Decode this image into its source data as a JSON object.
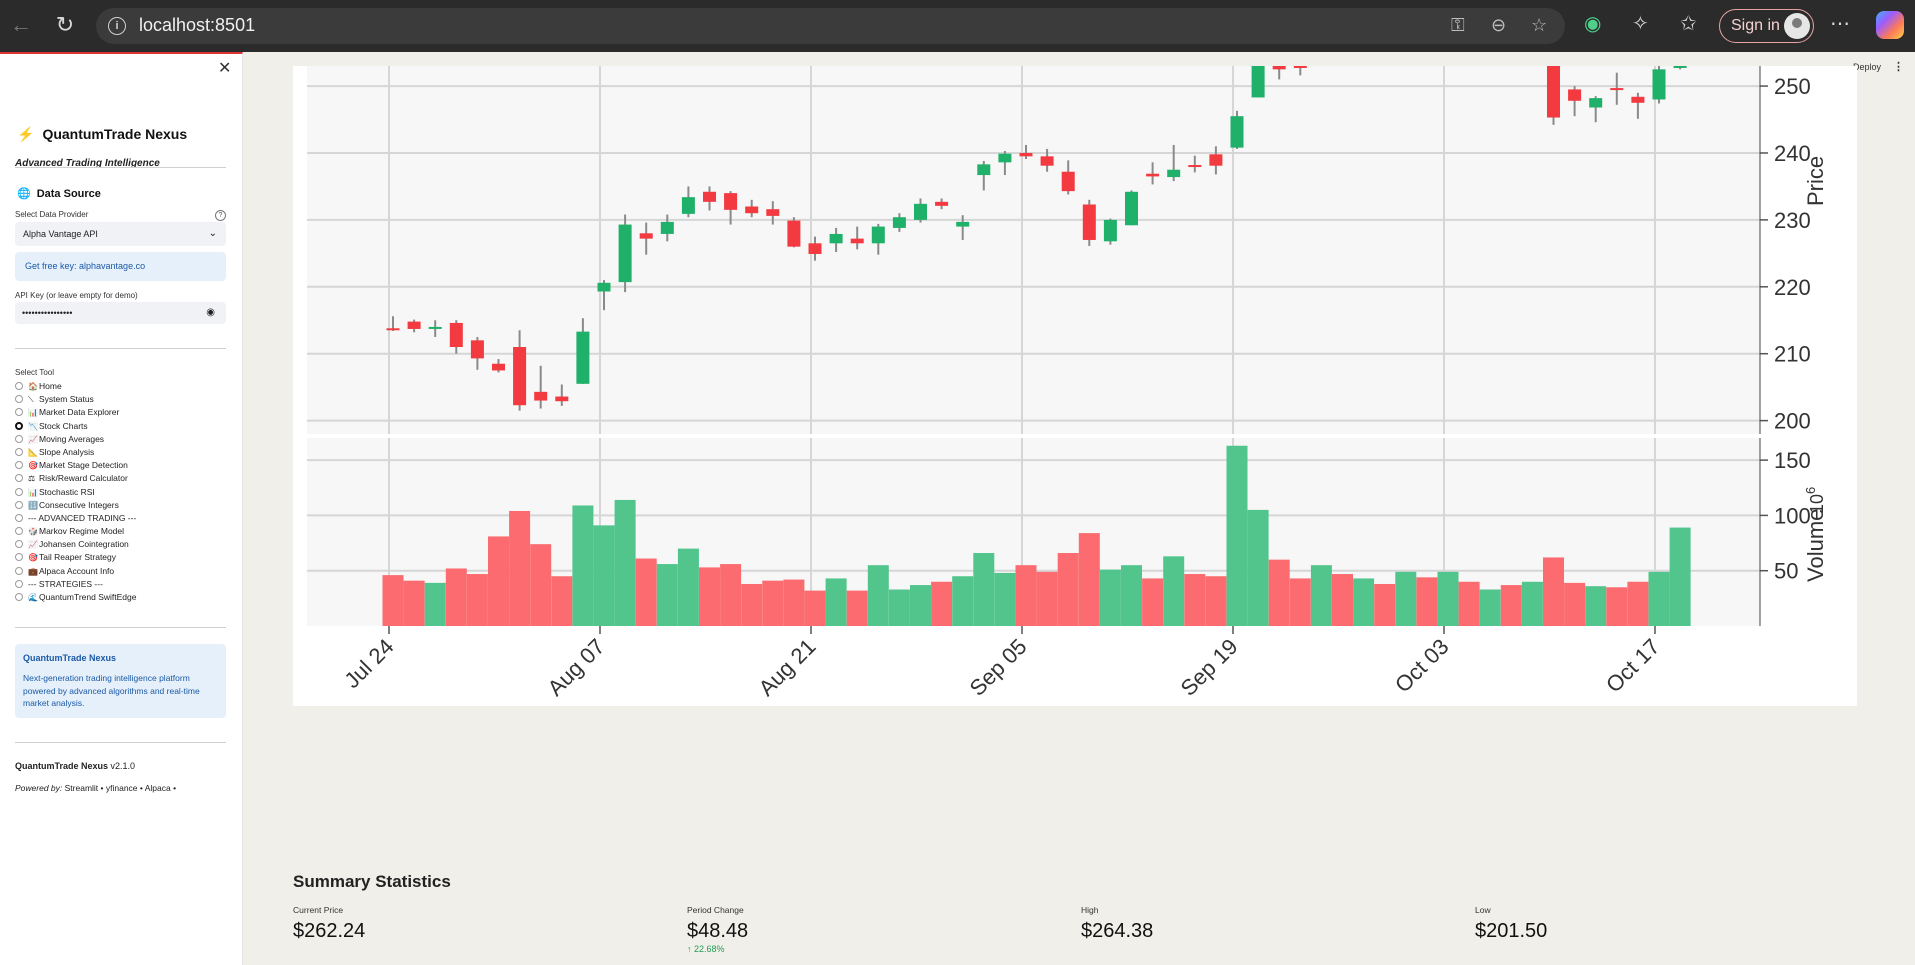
{
  "browser": {
    "url": "localhost:8501",
    "sign_in": "Sign in"
  },
  "sidebar": {
    "app_name": "QuantumTrade Nexus",
    "tagline": "Advanced Trading Intelligence",
    "data_source_title": "Data Source",
    "provider_label": "Select Data Provider",
    "provider_value": "Alpha Vantage API",
    "free_key_text": "Get free key: alphavantage.co",
    "api_key_label": "API Key (or leave empty for demo)",
    "api_key_value": "••••••••••••••••",
    "select_tool_label": "Select Tool",
    "tools": [
      {
        "icon": "🏠",
        "label": "Home",
        "selected": false
      },
      {
        "icon": "⟍",
        "label": "System Status",
        "selected": false
      },
      {
        "icon": "📊",
        "label": "Market Data Explorer",
        "selected": false
      },
      {
        "icon": "📉",
        "label": "Stock Charts",
        "selected": true
      },
      {
        "icon": "📈",
        "label": "Moving Averages",
        "selected": false
      },
      {
        "icon": "📐",
        "label": "Slope Analysis",
        "selected": false
      },
      {
        "icon": "🎯",
        "label": "Market Stage Detection",
        "selected": false
      },
      {
        "icon": "⚖",
        "label": "Risk/Reward Calculator",
        "selected": false
      },
      {
        "icon": "📊",
        "label": "Stochastic RSI",
        "selected": false
      },
      {
        "icon": "🔢",
        "label": "Consecutive Integers",
        "selected": false
      },
      {
        "icon": "",
        "label": "--- ADVANCED TRADING ---",
        "selected": false
      },
      {
        "icon": "🎲",
        "label": "Markov Regime Model",
        "selected": false
      },
      {
        "icon": "📈",
        "label": "Johansen Cointegration",
        "selected": false
      },
      {
        "icon": "🎯",
        "label": "Tail Reaper Strategy",
        "selected": false
      },
      {
        "icon": "💼",
        "label": "Alpaca Account Info",
        "selected": false
      },
      {
        "icon": "",
        "label": "--- STRATEGIES ---",
        "selected": false
      },
      {
        "icon": "🌊",
        "label": "QuantumTrend SwiftEdge",
        "selected": false
      }
    ],
    "about_title": "QuantumTrade Nexus",
    "about_text": "Next-generation trading intelligence platform powered by advanced algorithms and real-time market analysis.",
    "version_name": "QuantumTrade Nexus",
    "version": "v2.1.0",
    "powered_by_label": "Powered by:",
    "powered_by": "Streamlit • yfinance • Alpaca •"
  },
  "header": {
    "deploy": "Deploy"
  },
  "chart_data": {
    "type": "candlestick",
    "price_axis_label": "Price",
    "volume_axis_label": "Volume",
    "volume_unit": "10^6",
    "price_ticks": [
      200,
      210,
      220,
      230,
      240,
      250
    ],
    "volume_ticks": [
      50,
      100,
      150
    ],
    "date_ticks": [
      "Jul 24",
      "Aug 07",
      "Aug 21",
      "Sep 05",
      "Sep 19",
      "Oct 03",
      "Oct 17"
    ],
    "ylim_price": [
      198,
      253
    ],
    "ylim_volume": [
      0,
      170
    ],
    "up_color": "#1fb06a",
    "down_color": "#f23a40",
    "candles": [
      {
        "o": 213.8,
        "h": 215.6,
        "l": 213.4,
        "c": 213.7,
        "v": 46
      },
      {
        "o": 214.8,
        "h": 215.1,
        "l": 213.2,
        "c": 213.7,
        "v": 41
      },
      {
        "o": 213.9,
        "h": 215.0,
        "l": 212.5,
        "c": 214.0,
        "v": 39
      },
      {
        "o": 214.6,
        "h": 215.0,
        "l": 210.0,
        "c": 211.0,
        "v": 52
      },
      {
        "o": 212.0,
        "h": 212.5,
        "l": 207.6,
        "c": 209.3,
        "v": 47
      },
      {
        "o": 208.5,
        "h": 209.2,
        "l": 207.2,
        "c": 207.5,
        "v": 81
      },
      {
        "o": 211.0,
        "h": 213.5,
        "l": 201.5,
        "c": 202.3,
        "v": 104
      },
      {
        "o": 204.3,
        "h": 208.2,
        "l": 201.8,
        "c": 203.0,
        "v": 74
      },
      {
        "o": 203.6,
        "h": 205.4,
        "l": 202.2,
        "c": 202.9,
        "v": 45
      },
      {
        "o": 205.5,
        "h": 215.3,
        "l": 205.5,
        "c": 213.3,
        "v": 109
      },
      {
        "o": 219.3,
        "h": 221.0,
        "l": 216.5,
        "c": 220.6,
        "v": 91
      },
      {
        "o": 220.7,
        "h": 230.8,
        "l": 219.2,
        "c": 229.3,
        "v": 114
      },
      {
        "o": 228.0,
        "h": 229.6,
        "l": 224.8,
        "c": 227.2,
        "v": 61
      },
      {
        "o": 227.9,
        "h": 230.8,
        "l": 226.8,
        "c": 229.7,
        "v": 56
      },
      {
        "o": 230.9,
        "h": 235.0,
        "l": 230.4,
        "c": 233.4,
        "v": 70
      },
      {
        "o": 234.2,
        "h": 235.0,
        "l": 231.4,
        "c": 232.7,
        "v": 53
      },
      {
        "o": 234.0,
        "h": 234.3,
        "l": 229.3,
        "c": 231.5,
        "v": 56
      },
      {
        "o": 232.0,
        "h": 233.0,
        "l": 230.4,
        "c": 231.0,
        "v": 38
      },
      {
        "o": 231.6,
        "h": 232.8,
        "l": 229.3,
        "c": 230.6,
        "v": 41
      },
      {
        "o": 229.9,
        "h": 230.4,
        "l": 225.9,
        "c": 226.0,
        "v": 42
      },
      {
        "o": 226.5,
        "h": 227.5,
        "l": 223.9,
        "c": 224.9,
        "v": 32
      },
      {
        "o": 226.5,
        "h": 228.8,
        "l": 225.2,
        "c": 227.9,
        "v": 43
      },
      {
        "o": 227.2,
        "h": 229.0,
        "l": 225.6,
        "c": 226.5,
        "v": 32
      },
      {
        "o": 226.5,
        "h": 229.4,
        "l": 224.8,
        "c": 229.0,
        "v": 55
      },
      {
        "o": 228.8,
        "h": 231.0,
        "l": 228.2,
        "c": 230.4,
        "v": 33
      },
      {
        "o": 230.0,
        "h": 233.2,
        "l": 229.6,
        "c": 232.4,
        "v": 37
      },
      {
        "o": 232.7,
        "h": 233.2,
        "l": 231.6,
        "c": 232.1,
        "v": 40
      },
      {
        "o": 229.0,
        "h": 230.7,
        "l": 227.0,
        "c": 229.7,
        "v": 45
      },
      {
        "o": 236.7,
        "h": 238.8,
        "l": 234.4,
        "c": 238.3,
        "v": 66
      },
      {
        "o": 238.6,
        "h": 240.3,
        "l": 236.7,
        "c": 239.9,
        "v": 48
      },
      {
        "o": 240.0,
        "h": 241.2,
        "l": 239.1,
        "c": 239.5,
        "v": 55
      },
      {
        "o": 239.5,
        "h": 240.6,
        "l": 237.2,
        "c": 238.1,
        "v": 49
      },
      {
        "o": 237.2,
        "h": 238.9,
        "l": 233.8,
        "c": 234.3,
        "v": 66
      },
      {
        "o": 232.3,
        "h": 233.0,
        "l": 226.1,
        "c": 227.0,
        "v": 84
      },
      {
        "o": 226.8,
        "h": 230.2,
        "l": 226.3,
        "c": 230.0,
        "v": 51
      },
      {
        "o": 229.2,
        "h": 234.4,
        "l": 229.2,
        "c": 234.2,
        "v": 55
      },
      {
        "o": 236.9,
        "h": 238.6,
        "l": 235.3,
        "c": 236.5,
        "v": 43
      },
      {
        "o": 236.4,
        "h": 241.2,
        "l": 235.8,
        "c": 237.5,
        "v": 63
      },
      {
        "o": 238.2,
        "h": 239.6,
        "l": 237.1,
        "c": 238.0,
        "v": 47
      },
      {
        "o": 239.8,
        "h": 241.0,
        "l": 236.8,
        "c": 238.1,
        "v": 45
      },
      {
        "o": 240.8,
        "h": 246.3,
        "l": 240.6,
        "c": 245.5,
        "v": 163
      },
      {
        "o": 248.3,
        "h": 253.0,
        "l": 248.3,
        "c": 253.0,
        "v": 105
      },
      {
        "o": 253.0,
        "h": 253.0,
        "l": 251.0,
        "c": 252.5,
        "v": 60
      },
      {
        "o": 253.0,
        "h": 253.0,
        "l": 251.6,
        "c": 252.8,
        "v": 43
      },
      {
        "o": null,
        "h": null,
        "l": null,
        "c": null,
        "v": 55
      },
      {
        "o": null,
        "h": null,
        "l": null,
        "c": null,
        "v": 47
      },
      {
        "o": null,
        "h": null,
        "l": null,
        "c": null,
        "v": 43
      },
      {
        "o": null,
        "h": null,
        "l": null,
        "c": null,
        "v": 38
      },
      {
        "o": null,
        "h": null,
        "l": null,
        "c": null,
        "v": 49
      },
      {
        "o": null,
        "h": null,
        "l": null,
        "c": null,
        "v": 44
      },
      {
        "o": null,
        "h": null,
        "l": null,
        "c": null,
        "v": 49
      },
      {
        "o": null,
        "h": null,
        "l": null,
        "c": null,
        "v": 40
      },
      {
        "o": null,
        "h": null,
        "l": null,
        "c": null,
        "v": 33
      },
      {
        "o": null,
        "h": null,
        "l": null,
        "c": null,
        "v": 37
      },
      {
        "o": null,
        "h": null,
        "l": null,
        "c": null,
        "v": 40
      },
      {
        "o": 253.0,
        "h": 253.0,
        "l": 244.2,
        "c": 245.3,
        "v": 62
      },
      {
        "o": 249.5,
        "h": 250.0,
        "l": 245.5,
        "c": 247.8,
        "v": 39
      },
      {
        "o": 246.8,
        "h": 248.5,
        "l": 244.6,
        "c": 248.2,
        "v": 36
      },
      {
        "o": 249.7,
        "h": 252.0,
        "l": 247.2,
        "c": 249.6,
        "v": 35
      },
      {
        "o": 248.4,
        "h": 249.0,
        "l": 245.1,
        "c": 247.5,
        "v": 40
      },
      {
        "o": 248.0,
        "h": 253.0,
        "l": 247.4,
        "c": 252.5,
        "v": 49
      },
      {
        "o": 253.0,
        "h": 253.0,
        "l": 252.5,
        "c": 253.0,
        "v": 89
      }
    ]
  },
  "summary": {
    "title": "Summary Statistics",
    "stats": [
      {
        "label": "Current Price",
        "value": "$262.24",
        "delta": ""
      },
      {
        "label": "Period Change",
        "value": "$48.48",
        "delta": "↑ 22.68%"
      },
      {
        "label": "High",
        "value": "$264.38",
        "delta": ""
      },
      {
        "label": "Low",
        "value": "$201.50",
        "delta": ""
      }
    ]
  }
}
